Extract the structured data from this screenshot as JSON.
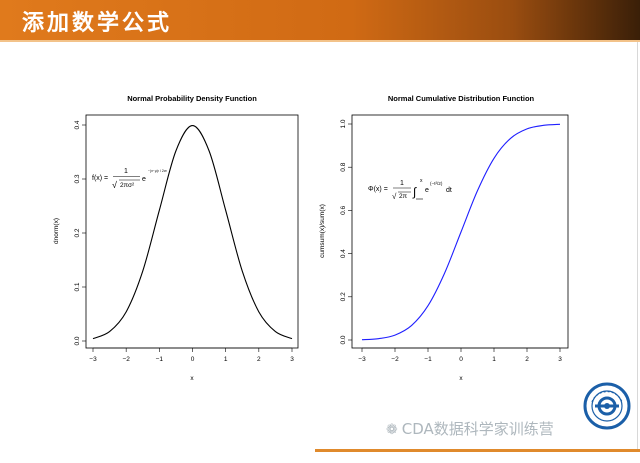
{
  "header": {
    "title": "添加数学公式"
  },
  "watermark": {
    "icon": "wechat-icon",
    "text": "CDA数据科学家训练营"
  },
  "logo": {
    "icon": "institution-seal-logo"
  },
  "colors": {
    "header_orange": "#e07a1c",
    "pdf_line": "#000000",
    "cdf_line": "#1f1fff"
  },
  "chart_data": [
    {
      "type": "line",
      "title": "Normal Probability Density Function",
      "xlabel": "x",
      "ylabel": "dnorm(x)",
      "xlim": [
        -3,
        3
      ],
      "ylim": [
        0,
        0.4
      ],
      "xticks": [
        -3,
        -2,
        -1,
        0,
        1,
        2,
        3
      ],
      "yticks": [
        0.0,
        0.1,
        0.2,
        0.3,
        0.4
      ],
      "xtick_labels": [
        "−3",
        "−2",
        "−1",
        "0",
        "1",
        "2",
        "3"
      ],
      "ytick_labels": [
        "0.0",
        "0.1",
        "0.2",
        "0.3",
        "0.4"
      ],
      "formula": {
        "lhs": "f(x) =",
        "numerator": "1",
        "denominator": "2πσ²",
        "factor": "e",
        "exponent": "−(x−μ)² / 2σ²"
      },
      "x": [
        -3.0,
        -2.5,
        -2.0,
        -1.5,
        -1.0,
        -0.5,
        0.0,
        0.5,
        1.0,
        1.5,
        2.0,
        2.5,
        3.0
      ],
      "y": [
        0.0044,
        0.0175,
        0.054,
        0.1295,
        0.242,
        0.3521,
        0.3989,
        0.3521,
        0.242,
        0.1295,
        0.054,
        0.0175,
        0.0044
      ],
      "color": "#000000",
      "grid": false
    },
    {
      "type": "line",
      "title": "Normal Cumulative Distribution Function",
      "xlabel": "x",
      "ylabel": "cumsum(x)/sum(x)",
      "xlim": [
        -3,
        3
      ],
      "ylim": [
        0,
        1
      ],
      "xticks": [
        -3,
        -2,
        -1,
        0,
        1,
        2,
        3
      ],
      "yticks": [
        0.0,
        0.2,
        0.4,
        0.6,
        0.8,
        1.0
      ],
      "xtick_labels": [
        "−3",
        "−2",
        "−1",
        "0",
        "1",
        "2",
        "3"
      ],
      "ytick_labels": [
        "0.0",
        "0.2",
        "0.4",
        "0.6",
        "0.8",
        "1.0"
      ],
      "formula": {
        "lhs": "Φ(x) =",
        "numerator": "1",
        "denominator": "2π",
        "integral_upper": "x",
        "integrand": "e",
        "exponent": "(−t²/2)",
        "differential": "dt"
      },
      "x": [
        -3.0,
        -2.5,
        -2.0,
        -1.5,
        -1.0,
        -0.5,
        0.0,
        0.5,
        1.0,
        1.5,
        2.0,
        2.5,
        3.0
      ],
      "y": [
        0.0013,
        0.0062,
        0.0228,
        0.0668,
        0.1587,
        0.3085,
        0.5,
        0.6915,
        0.8413,
        0.9332,
        0.9772,
        0.9938,
        0.9987
      ],
      "color": "#1f1fff",
      "grid": false
    }
  ]
}
